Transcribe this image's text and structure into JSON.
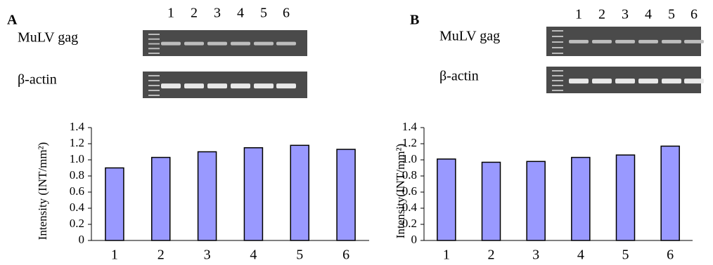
{
  "chart_data": [
    {
      "type": "bar",
      "title": "A",
      "gel": {
        "lanes": [
          "1",
          "2",
          "3",
          "4",
          "5",
          "6"
        ],
        "rows": [
          "MuLV gag",
          "β-actin"
        ]
      },
      "y_label": "Intensity (INT/mm²)",
      "categories": [
        "1",
        "2",
        "3",
        "4",
        "5",
        "6"
      ],
      "values": [
        0.9,
        1.03,
        1.1,
        1.15,
        1.18,
        1.13
      ],
      "color": "#9999ff",
      "ylim": [
        0,
        1.4
      ],
      "yticks": [
        0,
        0.2,
        0.4,
        0.6,
        0.8,
        {
          "value": 1,
          "label": "1.0"
        },
        1.2,
        1.4
      ]
    },
    {
      "type": "bar",
      "title": "B",
      "gel": {
        "lanes": [
          "1",
          "2",
          "3",
          "4",
          "5",
          "6"
        ],
        "rows": [
          "MuLV gag",
          "β-actin"
        ]
      },
      "y_label": "Intensity(INT/mm²)",
      "categories": [
        "1",
        "2",
        "3",
        "4",
        "5",
        "6"
      ],
      "values": [
        1.01,
        0.97,
        0.98,
        1.03,
        1.06,
        1.17
      ],
      "color": "#9999ff",
      "ylim": [
        0,
        1.4
      ],
      "yticks": [
        0,
        0.2,
        0.4,
        0.6,
        0.8,
        {
          "value": 1,
          "label": "1.0"
        },
        1.2,
        1.4
      ]
    }
  ]
}
